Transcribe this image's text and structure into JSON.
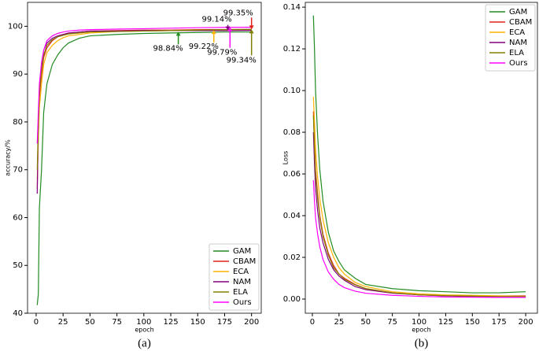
{
  "chart_data": [
    {
      "type": "line",
      "caption": "(a)",
      "x_label": "epoch",
      "y_label": "accuracy/%",
      "x": [
        1,
        2,
        3,
        5,
        7,
        10,
        15,
        20,
        25,
        30,
        40,
        50,
        75,
        100,
        125,
        150,
        175,
        200
      ],
      "series": [
        {
          "name": "GAM",
          "color": "#228b22",
          "values": [
            41.7,
            44,
            62,
            70,
            82,
            88,
            92,
            94,
            95.5,
            96.5,
            97.5,
            98,
            98.3,
            98.5,
            98.6,
            98.7,
            98.8,
            98.8
          ]
        },
        {
          "name": "CBAM",
          "color": "#e0241b",
          "values": [
            66,
            78,
            85,
            90,
            93.5,
            95.5,
            97,
            97.8,
            98.2,
            98.5,
            98.8,
            99,
            99.1,
            99.2,
            99.2,
            99.3,
            99.3,
            99.35
          ]
        },
        {
          "name": "ECA",
          "color": "#ffb300",
          "values": [
            68,
            76,
            83,
            88,
            92,
            94.5,
            96,
            97,
            97.6,
            98,
            98.3,
            98.6,
            98.9,
            99,
            99.1,
            99.2,
            99.2,
            99.22
          ]
        },
        {
          "name": "NAM",
          "color": "#800080",
          "values": [
            65,
            80,
            87,
            92,
            95,
            96.5,
            97.5,
            98,
            98.3,
            98.6,
            98.8,
            99,
            99,
            99.1,
            99.1,
            99.1,
            99.1,
            99.14
          ]
        },
        {
          "name": "ELA",
          "color": "#808000",
          "values": [
            70,
            79,
            86,
            91,
            94,
            96,
            97.2,
            97.8,
            98.1,
            98.4,
            98.6,
            98.8,
            98.9,
            99,
            99.1,
            99.2,
            99.3,
            99.34
          ]
        },
        {
          "name": "Ours",
          "color": "#ff00ff",
          "values": [
            75.5,
            82,
            88,
            92.5,
            95,
            97,
            98,
            98.5,
            98.8,
            99,
            99.2,
            99.3,
            99.4,
            99.5,
            99.6,
            99.7,
            99.75,
            99.79
          ]
        }
      ],
      "annotations": [
        {
          "text": "98.84%",
          "x": 132,
          "y": 98.84,
          "color": "#228b22"
        },
        {
          "text": "99.22%",
          "x": 165,
          "y": 99.22,
          "color": "#ffb300"
        },
        {
          "text": "99.79%",
          "x": 180,
          "y": 99.79,
          "color": "#ff00ff"
        },
        {
          "text": "99.14%",
          "x": 178,
          "y": 99.14,
          "color": "#800080"
        },
        {
          "text": "99.35%",
          "x": 200,
          "y": 99.35,
          "color": "#e0241b"
        },
        {
          "text": "99.34%",
          "x": 200,
          "y": 99.34,
          "color": "#808000"
        }
      ],
      "xlim": [
        -8,
        209
      ],
      "ylim": [
        40,
        105
      ],
      "xticks": [
        0,
        25,
        50,
        75,
        100,
        125,
        150,
        175,
        200
      ],
      "yticks": [
        40,
        50,
        60,
        70,
        80,
        90,
        100
      ],
      "legend": "lower right"
    },
    {
      "type": "line",
      "caption": "(b)",
      "x_label": "epoch",
      "y_label": "Loss",
      "x": [
        1,
        2,
        3,
        5,
        7,
        10,
        15,
        20,
        25,
        30,
        40,
        50,
        75,
        100,
        125,
        150,
        175,
        200
      ],
      "series": [
        {
          "name": "GAM",
          "color": "#228b22",
          "values": [
            0.136,
            0.12,
            0.1,
            0.078,
            0.062,
            0.047,
            0.032,
            0.023,
            0.018,
            0.014,
            0.01,
            0.007,
            0.005,
            0.004,
            0.0035,
            0.003,
            0.003,
            0.0035
          ]
        },
        {
          "name": "CBAM",
          "color": "#e0241b",
          "values": [
            0.09,
            0.075,
            0.062,
            0.05,
            0.04,
            0.031,
            0.022,
            0.016,
            0.012,
            0.01,
            0.007,
            0.005,
            0.003,
            0.002,
            0.0018,
            0.0015,
            0.0015,
            0.0015
          ]
        },
        {
          "name": "ECA",
          "color": "#ffb300",
          "values": [
            0.097,
            0.085,
            0.072,
            0.058,
            0.048,
            0.038,
            0.027,
            0.02,
            0.015,
            0.012,
            0.008,
            0.006,
            0.0035,
            0.0025,
            0.002,
            0.0018,
            0.0015,
            0.0013
          ]
        },
        {
          "name": "NAM",
          "color": "#800080",
          "values": [
            0.08,
            0.065,
            0.053,
            0.042,
            0.034,
            0.027,
            0.019,
            0.014,
            0.011,
            0.009,
            0.006,
            0.0045,
            0.0028,
            0.002,
            0.0015,
            0.0012,
            0.001,
            0.001
          ]
        },
        {
          "name": "ELA",
          "color": "#808000",
          "values": [
            0.088,
            0.072,
            0.06,
            0.048,
            0.039,
            0.03,
            0.021,
            0.015,
            0.012,
            0.0095,
            0.0068,
            0.005,
            0.003,
            0.002,
            0.0016,
            0.0014,
            0.0012,
            0.0012
          ]
        },
        {
          "name": "Ours",
          "color": "#ff00ff",
          "values": [
            0.057,
            0.047,
            0.039,
            0.031,
            0.025,
            0.019,
            0.013,
            0.0095,
            0.007,
            0.0055,
            0.0038,
            0.0028,
            0.0018,
            0.0013,
            0.001,
            0.0009,
            0.0008,
            0.0008
          ]
        }
      ],
      "xlim": [
        -6.6,
        211
      ],
      "ylim": [
        -0.0068,
        0.1423
      ],
      "xticks": [
        0,
        25,
        50,
        75,
        100,
        125,
        150,
        175,
        200
      ],
      "yticks": [
        {
          "value": 0,
          "label": "0.00"
        },
        0.02,
        0.04,
        0.06,
        0.08,
        {
          "value": 0.1,
          "label": "0.10"
        },
        0.12,
        0.14
      ],
      "legend": "upper right"
    }
  ]
}
